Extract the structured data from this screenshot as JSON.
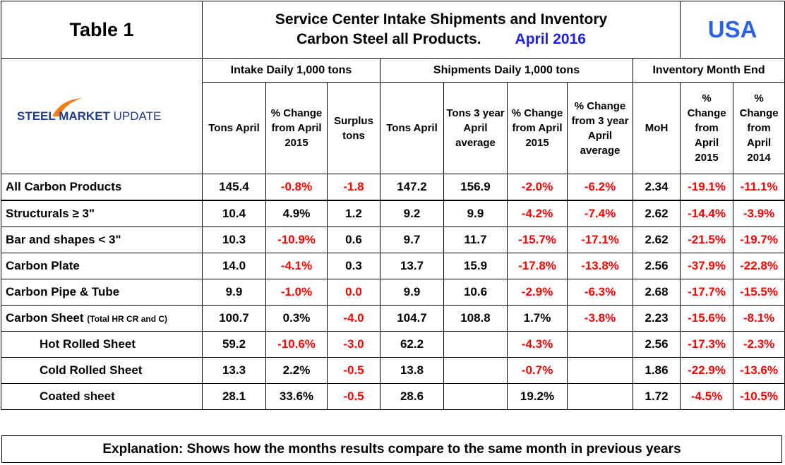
{
  "header": {
    "table_label": "Table 1",
    "title_line1": "Service Center Intake Shipments and Inventory",
    "title_line2": "Carbon Steel all Products.",
    "period": "April 2016",
    "region": "USA"
  },
  "logo": {
    "text_bold": "STEEL MARKET",
    "text_light": "UPDATE"
  },
  "table": {
    "groups": [
      {
        "label": "Intake Daily 1,000 tons",
        "span": 3
      },
      {
        "label": "Shipments Daily 1,000 tons",
        "span": 4
      },
      {
        "label": "Inventory Month End",
        "span": 3
      }
    ],
    "columns": [
      "Tons April",
      "% Change from April 2015",
      "Surplus tons",
      "Tons April",
      "Tons 3 year April average",
      "% Change from April 2015",
      "% Change from 3 year April average",
      "MoH",
      "% Change from April 2015",
      "% Change from April 2014"
    ],
    "rows": [
      {
        "label": "All Carbon Products",
        "cells": [
          "145.4",
          "-0.8%",
          "-1.8",
          "147.2",
          "156.9",
          "-2.0%",
          "-6.2%",
          "2.34",
          "-19.1%",
          "-11.1%"
        ],
        "red": [
          1,
          2,
          5,
          6,
          8,
          9
        ]
      },
      {
        "label": "Structurals ≥ 3\"",
        "cells": [
          "10.4",
          "4.9%",
          "1.2",
          "9.2",
          "9.9",
          "-4.2%",
          "-7.4%",
          "2.62",
          "-14.4%",
          "-3.9%"
        ],
        "red": [
          5,
          6,
          8,
          9
        ]
      },
      {
        "label": "Bar and shapes < 3\"",
        "cells": [
          "10.3",
          "-10.9%",
          "0.6",
          "9.7",
          "11.7",
          "-15.7%",
          "-17.1%",
          "2.62",
          "-21.5%",
          "-19.7%"
        ],
        "red": [
          1,
          5,
          6,
          8,
          9
        ]
      },
      {
        "label": "Carbon Plate",
        "cells": [
          "14.0",
          "-4.1%",
          "0.3",
          "13.7",
          "15.9",
          "-17.8%",
          "-13.8%",
          "2.56",
          "-37.9%",
          "-22.8%"
        ],
        "red": [
          1,
          5,
          6,
          8,
          9
        ]
      },
      {
        "label": "Carbon Pipe & Tube",
        "cells": [
          "9.9",
          "-1.0%",
          "0.0",
          "9.9",
          "10.6",
          "-2.9%",
          "-6.3%",
          "2.68",
          "-17.7%",
          "-15.5%"
        ],
        "red": [
          1,
          2,
          5,
          6,
          8,
          9
        ]
      },
      {
        "label": "Carbon Sheet",
        "note": "(Total HR CR and C)",
        "cells": [
          "100.7",
          "0.3%",
          "-4.0",
          "104.7",
          "108.8",
          "1.7%",
          "-3.8%",
          "2.23",
          "-15.6%",
          "-8.1%"
        ],
        "red": [
          2,
          6,
          8,
          9
        ]
      },
      {
        "label": "Hot Rolled Sheet",
        "indent": true,
        "cells": [
          "59.2",
          "-10.6%",
          "-3.0",
          "62.2",
          null,
          "-4.3%",
          null,
          "2.56",
          "-17.3%",
          "-2.3%"
        ],
        "red": [
          1,
          2,
          5,
          8,
          9
        ]
      },
      {
        "label": "Cold Rolled Sheet",
        "indent": true,
        "cells": [
          "13.3",
          "2.2%",
          "-0.5",
          "13.8",
          null,
          "-0.7%",
          null,
          "1.86",
          "-22.9%",
          "-13.6%"
        ],
        "red": [
          2,
          5,
          8,
          9
        ]
      },
      {
        "label": "Coated sheet",
        "indent": true,
        "cells": [
          "28.1",
          "33.6%",
          "-0.5",
          "28.6",
          null,
          "19.2%",
          null,
          "1.72",
          "-4.5%",
          "-10.5%"
        ],
        "red": [
          2,
          8,
          9
        ]
      }
    ]
  },
  "footer": {
    "explanation": "Explanation: Shows how the months results compare to the same month in previous years"
  }
}
